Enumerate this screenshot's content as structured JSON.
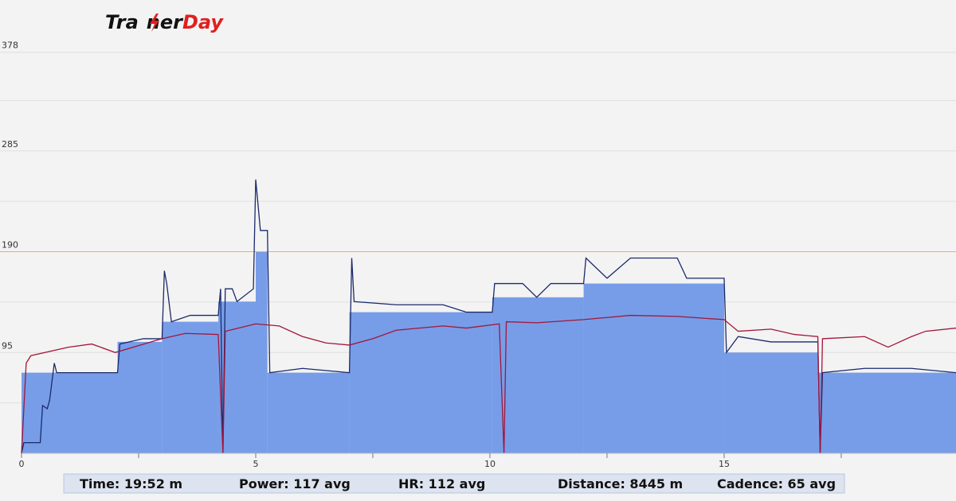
{
  "logo": {
    "left": "Tra",
    "mid": "ner",
    "right": "Day"
  },
  "chart_data": {
    "type": "line",
    "xlim": [
      0,
      19.95
    ],
    "ylim": [
      0,
      425
    ],
    "xticks": [
      0,
      5,
      10,
      15
    ],
    "xminor": [
      2.5,
      7.5,
      12.5,
      17.5
    ],
    "yticks": [
      95,
      190,
      285,
      378
    ],
    "yminor": [
      47.5,
      142.5,
      237.5,
      332.5
    ],
    "grid": true,
    "reference_line": {
      "value": 190,
      "color": "#f0b24a"
    },
    "target": {
      "color": "#779de8",
      "x": [
        0,
        2.05,
        3,
        4.2,
        5,
        5.25,
        7,
        10.05,
        12,
        15,
        17
      ],
      "values": [
        76,
        105,
        124,
        143,
        190,
        76,
        133,
        147,
        160,
        95,
        76
      ]
    },
    "series": [
      {
        "color": "#1b2a6b",
        "x": [
          0,
          0.05,
          0.4,
          0.45,
          0.55,
          0.6,
          0.7,
          0.75,
          2.05,
          2.1,
          2.6,
          3.0,
          3.05,
          3.1,
          3.2,
          3.6,
          4.2,
          4.25,
          4.3,
          4.35,
          4.5,
          4.6,
          4.95,
          5.0,
          5.1,
          5.25,
          5.3,
          6.0,
          7.0,
          7.05,
          7.1,
          8.0,
          9.0,
          9.5,
          10.05,
          10.1,
          10.7,
          11.0,
          11.3,
          12.0,
          12.05,
          12.5,
          13.0,
          14.0,
          14.2,
          15.0,
          15.05,
          15.3,
          16.0,
          17.0,
          17.05,
          17.1,
          18.0,
          19.0,
          19.95
        ],
        "values": [
          0,
          10,
          10,
          45,
          42,
          50,
          85,
          76,
          76,
          103,
          108,
          108,
          172,
          160,
          124,
          130,
          130,
          155,
          0,
          155,
          155,
          143,
          155,
          258,
          210,
          210,
          76,
          80,
          76,
          184,
          143,
          140,
          140,
          133,
          133,
          160,
          160,
          147,
          160,
          160,
          184,
          165,
          184,
          184,
          165,
          165,
          95,
          110,
          105,
          105,
          0,
          76,
          80,
          80,
          76
        ]
      },
      {
        "color": "#a3163a",
        "x": [
          0,
          0.1,
          0.2,
          1.0,
          1.5,
          2.0,
          3.0,
          3.5,
          4.2,
          4.3,
          4.35,
          5.0,
          5.5,
          6.0,
          6.5,
          7.0,
          7.5,
          8.0,
          9.0,
          9.5,
          10.2,
          10.3,
          10.35,
          11.0,
          12.0,
          13.0,
          14.0,
          15.0,
          15.3,
          16.0,
          16.5,
          17.0,
          17.05,
          17.1,
          18.0,
          18.5,
          19.0,
          19.3,
          19.95
        ],
        "values": [
          0,
          85,
          92,
          100,
          103,
          95,
          108,
          113,
          112,
          0,
          115,
          122,
          120,
          110,
          104,
          102,
          108,
          116,
          120,
          118,
          122,
          0,
          124,
          123,
          126,
          130,
          129,
          126,
          115,
          117,
          112,
          110,
          0,
          108,
          110,
          100,
          110,
          115,
          118
        ]
      }
    ]
  },
  "stats": [
    "Time: 19:52 m",
    "Power: 117 avg",
    "HR: 112 avg",
    "Distance: 8445 m",
    "Cadence: 65 avg"
  ]
}
